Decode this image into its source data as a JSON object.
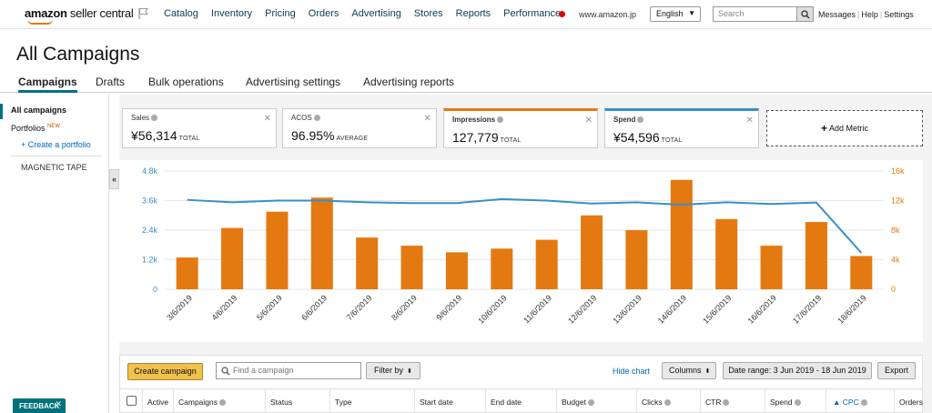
{
  "header": {
    "logo_bold": "amazon",
    "logo_thin": " seller central",
    "nav": [
      "Catalog",
      "Inventory",
      "Pricing",
      "Orders",
      "Advertising",
      "Stores",
      "Reports",
      "Performance"
    ],
    "domain": "www.amazon.jp",
    "language": "English",
    "search_placeholder": "Search",
    "links": [
      "Messages",
      "Help",
      "Settings"
    ]
  },
  "page_title": "All Campaigns",
  "tabs": [
    "Campaigns",
    "Drafts",
    "Bulk operations",
    "Advertising settings",
    "Advertising reports"
  ],
  "sidebar": {
    "all_campaigns": "All campaigns",
    "portfolios": "Portfolios",
    "portfolios_badge": "NEW",
    "create_portfolio": "+ Create a portfolio",
    "portfolio_item": "MAGNETIC TAPE",
    "collapse": "«"
  },
  "metrics": [
    {
      "label": "Sales",
      "value": "¥56,314",
      "sub": "TOTAL",
      "accent": "none"
    },
    {
      "label": "ACOS",
      "value": "96.95%",
      "sub": "AVERAGE",
      "accent": "none"
    },
    {
      "label": "Impressions",
      "value": "127,779",
      "sub": "TOTAL",
      "accent": "#e47911"
    },
    {
      "label": "Spend",
      "value": "¥54,596",
      "sub": "TOTAL",
      "accent": "#3a8fc6"
    }
  ],
  "add_metric": "Add Metric",
  "chart_data": {
    "type": "bar",
    "categories": [
      "3/6/2019",
      "4/6/2019",
      "5/6/2019",
      "6/6/2019",
      "7/6/2019",
      "8/6/2019",
      "9/6/2019",
      "10/6/2019",
      "11/6/2019",
      "12/6/2019",
      "13/6/2019",
      "14/6/2019",
      "15/6/2019",
      "16/6/2019",
      "17/6/2019",
      "18/6/2019"
    ],
    "series": [
      {
        "name": "Impressions",
        "kind": "bar",
        "axis": "right",
        "color": "#e47911",
        "values": [
          4300,
          8300,
          10500,
          12400,
          7000,
          5900,
          5000,
          5500,
          6700,
          10000,
          8000,
          14800,
          9500,
          5900,
          9100,
          4500
        ]
      },
      {
        "name": "Spend",
        "kind": "line",
        "axis": "left",
        "color": "#3a8fc6",
        "values": [
          3630,
          3530,
          3600,
          3600,
          3530,
          3500,
          3500,
          3660,
          3600,
          3480,
          3530,
          3430,
          3530,
          3460,
          3520,
          1480
        ]
      }
    ],
    "yleft_ticks": [
      "0",
      "1.2k",
      "2.4k",
      "3.6k",
      "4.8k"
    ],
    "yleft_lim": [
      0,
      4800
    ],
    "yright_ticks": [
      "0",
      "4k",
      "8k",
      "12k",
      "16k"
    ],
    "yright_lim": [
      0,
      16000
    ],
    "grid": true
  },
  "table_toolbar": {
    "create": "Create campaign",
    "find_placeholder": "Find a campaign",
    "filter": "Filter by",
    "hide_chart": "Hide chart",
    "columns": "Columns",
    "date_range": "Date range: 3 Jun 2019 - 18 Jun 2019",
    "export": "Export"
  },
  "columns": [
    "Active",
    "Campaigns",
    "Status",
    "Type",
    "Start date",
    "End date",
    "Budget",
    "Clicks",
    "CTR",
    "Spend",
    "CPC",
    "Orders"
  ],
  "feedback": "FEEDBACK"
}
